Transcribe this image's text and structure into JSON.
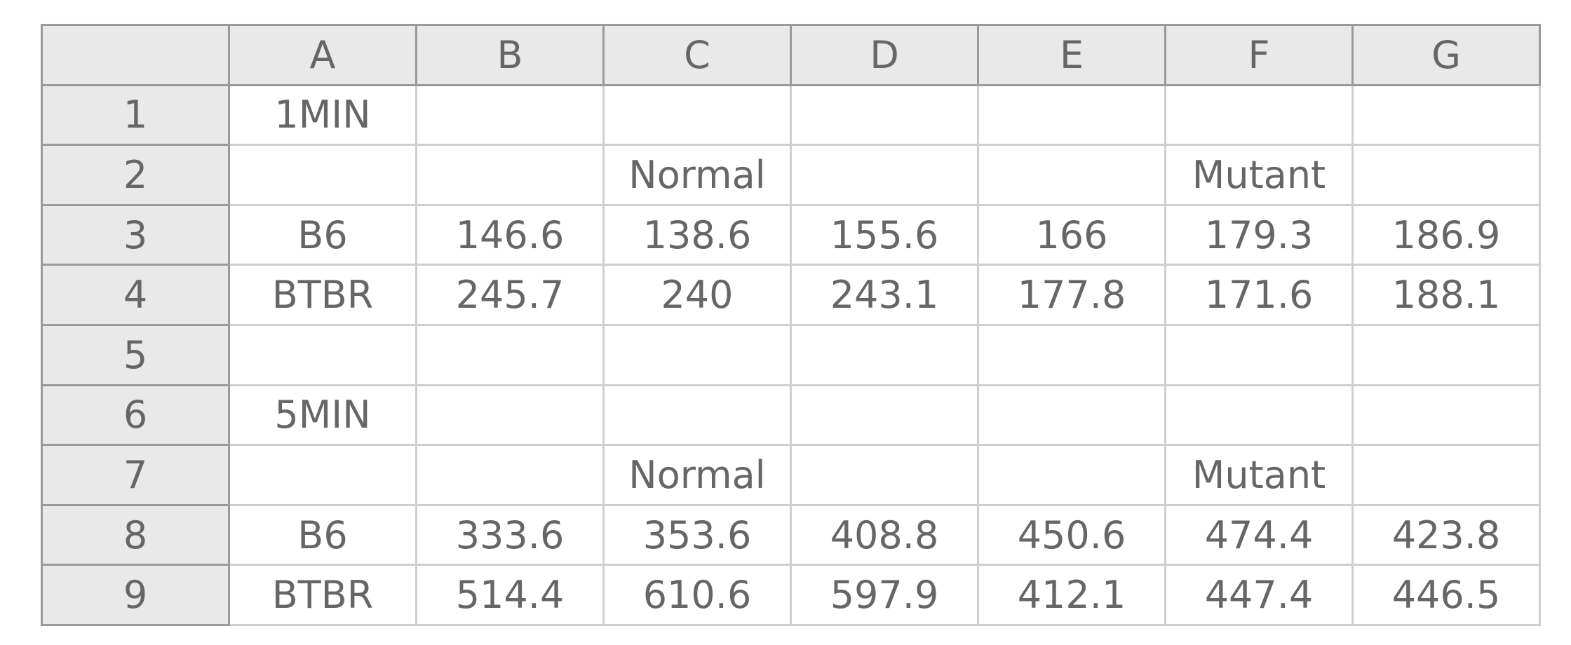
{
  "columns": [
    "A",
    "B",
    "C",
    "D",
    "E",
    "F",
    "G"
  ],
  "rows": [
    {
      "num": "1",
      "cells": [
        "1MIN",
        "",
        "",
        "",
        "",
        "",
        ""
      ]
    },
    {
      "num": "2",
      "cells": [
        "",
        "",
        "Normal",
        "",
        "",
        "Mutant",
        ""
      ]
    },
    {
      "num": "3",
      "cells": [
        "B6",
        "146.6",
        "138.6",
        "155.6",
        "166",
        "179.3",
        "186.9"
      ]
    },
    {
      "num": "4",
      "cells": [
        "BTBR",
        "245.7",
        "240",
        "243.1",
        "177.8",
        "171.6",
        "188.1"
      ]
    },
    {
      "num": "5",
      "cells": [
        "",
        "",
        "",
        "",
        "",
        "",
        ""
      ]
    },
    {
      "num": "6",
      "cells": [
        "5MIN",
        "",
        "",
        "",
        "",
        "",
        ""
      ]
    },
    {
      "num": "7",
      "cells": [
        "",
        "",
        "Normal",
        "",
        "",
        "Mutant",
        ""
      ]
    },
    {
      "num": "8",
      "cells": [
        "B6",
        "333.6",
        "353.6",
        "408.8",
        "450.6",
        "474.4",
        "423.8"
      ]
    },
    {
      "num": "9",
      "cells": [
        "BTBR",
        "514.4",
        "610.6",
        "597.9",
        "412.1",
        "447.4",
        "446.5"
      ]
    }
  ],
  "colors": {
    "header_background": "#e9e9e9",
    "header_border": "#9a9a9a",
    "grid_line": "#cfcfcf",
    "text": "#666666"
  }
}
